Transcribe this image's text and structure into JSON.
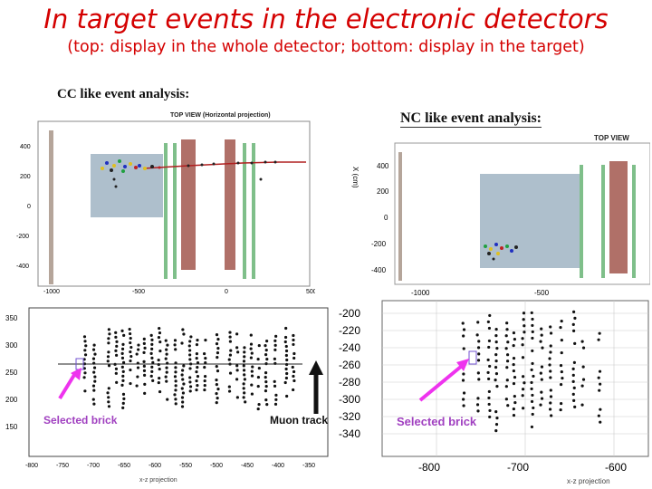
{
  "slide": {
    "title": "In target events in the electronic detectors",
    "subtitle": "(top: display in the whole detector; bottom: display in the target)"
  },
  "cc_panel": {
    "heading": "CC like event analysis:",
    "view_label": "TOP VIEW (Horizontal projection)",
    "y_ticks": [
      "400",
      "200",
      "0",
      "-200",
      "-400"
    ],
    "x_ticks": [
      "-1000",
      "-500",
      "0",
      "500"
    ]
  },
  "nc_panel": {
    "heading": "NC like event analysis:",
    "view_label": "TOP VIEW",
    "axis_label": "X (cm)",
    "y_ticks": [
      "400",
      "200",
      "0",
      "-200",
      "-400"
    ],
    "x_ticks": [
      "-1000",
      "-500"
    ]
  },
  "cc_target": {
    "y_ticks": [
      "350",
      "300",
      "250",
      "200",
      "150"
    ],
    "x_ticks": [
      "-800",
      "-750",
      "-700",
      "-650",
      "-600",
      "-550",
      "-500",
      "-450",
      "-400",
      "-350"
    ],
    "x_axis_label": "x-z projection",
    "brick_label": "Selected brick",
    "muon_label": "Muon track"
  },
  "nc_target": {
    "y_ticks": [
      "-200",
      "-220",
      "-240",
      "-260",
      "-280",
      "-300",
      "-320",
      "-340"
    ],
    "x_ticks": [
      "-800",
      "-700",
      "-600"
    ],
    "x_axis_label": "x-z projection",
    "brick_label": "Selected brick"
  },
  "colors": {
    "title": "#d40000",
    "target_block": "#aebfcc",
    "magnet": "#b07068",
    "rpc_plane": "#7fbf8a",
    "brick_arrow": "#ee33ee",
    "brick_label": "#a040c0",
    "track": "#b02020"
  }
}
